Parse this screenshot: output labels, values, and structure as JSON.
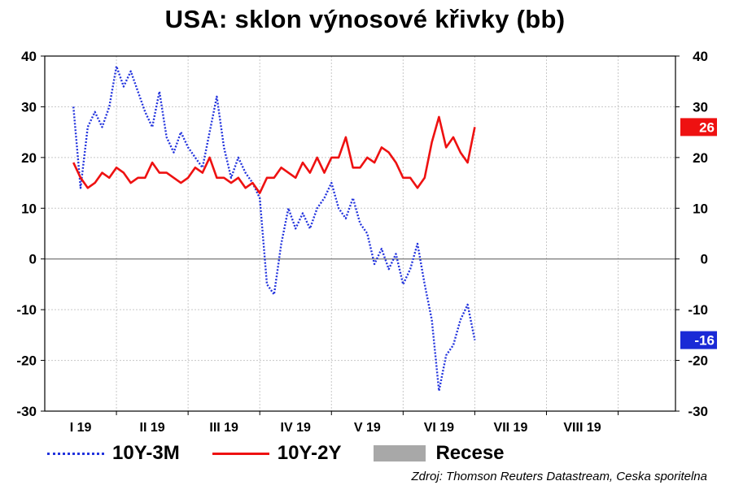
{
  "title": "USA: sklon výnosové křivky (bb)",
  "source": "Zdroj: Thomson Reuters Datastream, Ceska sporitelna",
  "legend": [
    {
      "label": "10Y-3M",
      "style": "dotted",
      "color": "#2233dd"
    },
    {
      "label": "10Y-2Y",
      "style": "solid",
      "color": "#ee1111"
    },
    {
      "label": "Recese",
      "style": "box",
      "color": "#a8a8a8"
    }
  ],
  "chart_data": {
    "type": "line",
    "title": "USA: sklon výnosové křivky (bb)",
    "ylim": [
      -30,
      40
    ],
    "y_ticks": [
      40,
      30,
      20,
      10,
      0,
      -10,
      -20,
      -30
    ],
    "x_categories": [
      "I 19",
      "II 19",
      "III 19",
      "IV 19",
      "V 19",
      "VI 19",
      "VII 19",
      "VIII 19"
    ],
    "grid": true,
    "legend_position": "bottom",
    "last_value_badges": [
      {
        "series": "10Y-2Y",
        "label": "26",
        "color": "#ee1111"
      },
      {
        "series": "10Y-3M",
        "label": "-16",
        "color": "#1a2ad6"
      }
    ],
    "series": [
      {
        "name": "10Y-3M",
        "color": "#2233dd",
        "style": "dotted",
        "x_index": [
          0,
          0.1,
          0.2,
          0.3,
          0.4,
          0.5,
          0.6,
          0.7,
          0.8,
          0.9,
          1,
          1.1,
          1.2,
          1.3,
          1.4,
          1.5,
          1.6,
          1.7,
          1.8,
          1.9,
          2,
          2.1,
          2.2,
          2.3,
          2.4,
          2.5,
          2.6,
          2.7,
          2.8,
          2.9,
          3,
          3.1,
          3.2,
          3.3,
          3.4,
          3.5,
          3.6,
          3.7,
          3.8,
          3.9,
          4,
          4.1,
          4.2,
          4.3,
          4.4,
          4.5,
          4.6,
          4.7,
          4.8,
          4.9,
          5,
          5.1,
          5.2,
          5.3,
          5.4,
          5.5,
          5.6
        ],
        "values": [
          30,
          14,
          26,
          29,
          26,
          30,
          38,
          34,
          37,
          33,
          29,
          26,
          33,
          24,
          21,
          25,
          22,
          20,
          18,
          25,
          32,
          22,
          16,
          20,
          17,
          15,
          12,
          -5,
          -7,
          3,
          10,
          6,
          9,
          6,
          10,
          12,
          15,
          10,
          8,
          12,
          7,
          5,
          -1,
          2,
          -2,
          1,
          -5,
          -2,
          3,
          -5,
          -12,
          -26,
          -19,
          -17,
          -12,
          -9,
          -16
        ]
      },
      {
        "name": "10Y-2Y",
        "color": "#ee1111",
        "style": "solid",
        "x_index": [
          0,
          0.1,
          0.2,
          0.3,
          0.4,
          0.5,
          0.6,
          0.7,
          0.8,
          0.9,
          1,
          1.1,
          1.2,
          1.3,
          1.4,
          1.5,
          1.6,
          1.7,
          1.8,
          1.9,
          2,
          2.1,
          2.2,
          2.3,
          2.4,
          2.5,
          2.6,
          2.7,
          2.8,
          2.9,
          3,
          3.1,
          3.2,
          3.3,
          3.4,
          3.5,
          3.6,
          3.7,
          3.8,
          3.9,
          4,
          4.1,
          4.2,
          4.3,
          4.4,
          4.5,
          4.6,
          4.7,
          4.8,
          4.9,
          5,
          5.1,
          5.2,
          5.3,
          5.4,
          5.5,
          5.6
        ],
        "values": [
          19,
          16,
          14,
          15,
          17,
          16,
          18,
          17,
          15,
          16,
          16,
          19,
          17,
          17,
          16,
          15,
          16,
          18,
          17,
          20,
          16,
          16,
          15,
          16,
          14,
          15,
          13,
          16,
          16,
          18,
          17,
          16,
          19,
          17,
          20,
          17,
          20,
          20,
          24,
          18,
          18,
          20,
          19,
          22,
          21,
          19,
          16,
          16,
          14,
          16,
          23,
          28,
          22,
          24,
          21,
          19,
          26
        ]
      }
    ]
  }
}
